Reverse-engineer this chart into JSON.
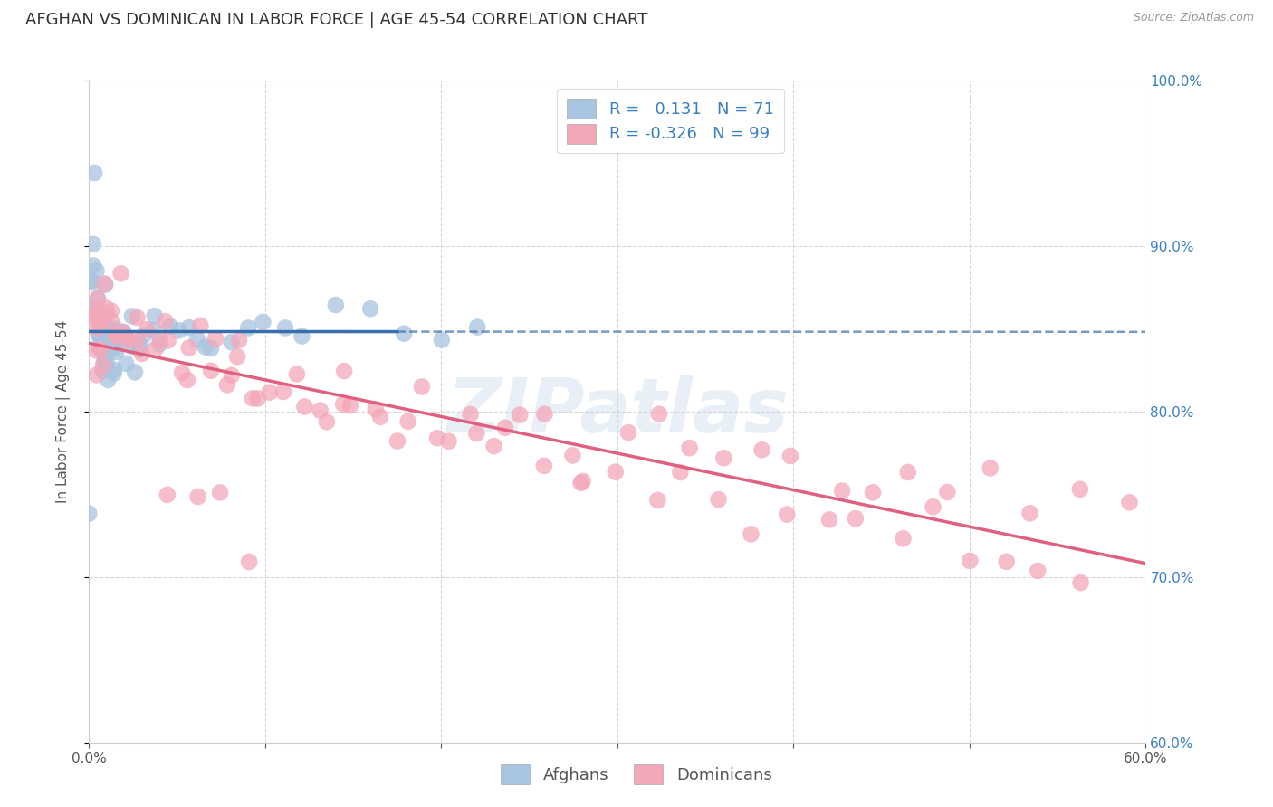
{
  "title": "AFGHAN VS DOMINICAN IN LABOR FORCE | AGE 45-54 CORRELATION CHART",
  "source": "Source: ZipAtlas.com",
  "ylabel": "In Labor Force | Age 45-54",
  "xlim": [
    0.0,
    0.6
  ],
  "ylim": [
    0.6,
    1.0
  ],
  "xticks": [
    0.0,
    0.1,
    0.2,
    0.3,
    0.4,
    0.5,
    0.6
  ],
  "xtick_labels": [
    "0.0%",
    "",
    "",
    "",
    "",
    "",
    "60.0%"
  ],
  "yticks": [
    0.6,
    0.7,
    0.8,
    0.9,
    1.0
  ],
  "ytick_labels": [
    "60.0%",
    "70.0%",
    "80.0%",
    "90.0%",
    "100.0%"
  ],
  "afghan_R": 0.131,
  "afghan_N": 71,
  "dominican_R": -0.326,
  "dominican_N": 99,
  "afghan_color": "#a8c4e0",
  "dominican_color": "#f4a7b9",
  "afghan_line_color": "#3a6fad",
  "dominican_line_color": "#e06080",
  "legend_labels": [
    "Afghans",
    "Dominicans"
  ],
  "watermark_text": "ZIPatlas",
  "background_color": "#ffffff",
  "grid_color": "#cccccc",
  "title_fontsize": 13,
  "axis_label_fontsize": 11,
  "tick_fontsize": 11,
  "legend_fontsize": 13,
  "afghan_x": [
    0.001,
    0.002,
    0.002,
    0.003,
    0.003,
    0.003,
    0.004,
    0.004,
    0.004,
    0.005,
    0.005,
    0.005,
    0.005,
    0.006,
    0.006,
    0.006,
    0.006,
    0.007,
    0.007,
    0.007,
    0.007,
    0.008,
    0.008,
    0.008,
    0.009,
    0.009,
    0.01,
    0.01,
    0.01,
    0.011,
    0.011,
    0.012,
    0.012,
    0.013,
    0.013,
    0.014,
    0.014,
    0.015,
    0.015,
    0.016,
    0.016,
    0.017,
    0.018,
    0.019,
    0.02,
    0.021,
    0.022,
    0.024,
    0.025,
    0.027,
    0.03,
    0.032,
    0.035,
    0.038,
    0.04,
    0.045,
    0.05,
    0.055,
    0.06,
    0.065,
    0.07,
    0.08,
    0.09,
    0.1,
    0.11,
    0.12,
    0.14,
    0.16,
    0.18,
    0.2,
    0.22
  ],
  "afghan_y": [
    0.745,
    0.935,
    0.91,
    0.895,
    0.88,
    0.865,
    0.88,
    0.87,
    0.86,
    0.875,
    0.865,
    0.855,
    0.845,
    0.86,
    0.855,
    0.845,
    0.835,
    0.86,
    0.85,
    0.84,
    0.835,
    0.85,
    0.84,
    0.835,
    0.845,
    0.838,
    0.848,
    0.84,
    0.832,
    0.845,
    0.835,
    0.845,
    0.838,
    0.845,
    0.838,
    0.845,
    0.838,
    0.845,
    0.838,
    0.845,
    0.84,
    0.842,
    0.84,
    0.84,
    0.842,
    0.84,
    0.842,
    0.842,
    0.84,
    0.842,
    0.842,
    0.845,
    0.843,
    0.845,
    0.843,
    0.845,
    0.845,
    0.847,
    0.848,
    0.847,
    0.847,
    0.848,
    0.848,
    0.848,
    0.848,
    0.85,
    0.85,
    0.85,
    0.85,
    0.85,
    0.85
  ],
  "dominican_x": [
    0.001,
    0.002,
    0.003,
    0.003,
    0.004,
    0.005,
    0.005,
    0.006,
    0.007,
    0.008,
    0.009,
    0.01,
    0.011,
    0.012,
    0.013,
    0.014,
    0.015,
    0.016,
    0.018,
    0.02,
    0.022,
    0.025,
    0.028,
    0.03,
    0.033,
    0.036,
    0.04,
    0.044,
    0.048,
    0.053,
    0.058,
    0.063,
    0.068,
    0.074,
    0.08,
    0.087,
    0.094,
    0.102,
    0.11,
    0.118,
    0.127,
    0.136,
    0.146,
    0.156,
    0.167,
    0.178,
    0.19,
    0.203,
    0.216,
    0.23,
    0.244,
    0.259,
    0.274,
    0.29,
    0.307,
    0.324,
    0.342,
    0.361,
    0.38,
    0.4,
    0.421,
    0.443,
    0.465,
    0.488,
    0.512,
    0.537,
    0.563,
    0.59,
    0.055,
    0.07,
    0.085,
    0.1,
    0.12,
    0.14,
    0.16,
    0.18,
    0.2,
    0.22,
    0.24,
    0.26,
    0.28,
    0.3,
    0.32,
    0.34,
    0.36,
    0.38,
    0.4,
    0.42,
    0.44,
    0.46,
    0.48,
    0.5,
    0.52,
    0.54,
    0.56,
    0.045,
    0.06,
    0.075,
    0.09
  ],
  "dominican_y": [
    0.865,
    0.855,
    0.862,
    0.852,
    0.858,
    0.855,
    0.848,
    0.855,
    0.852,
    0.855,
    0.852,
    0.845,
    0.848,
    0.852,
    0.848,
    0.848,
    0.845,
    0.845,
    0.848,
    0.848,
    0.845,
    0.845,
    0.842,
    0.845,
    0.842,
    0.842,
    0.84,
    0.84,
    0.838,
    0.838,
    0.835,
    0.835,
    0.832,
    0.832,
    0.83,
    0.828,
    0.825,
    0.822,
    0.82,
    0.818,
    0.815,
    0.812,
    0.81,
    0.808,
    0.805,
    0.802,
    0.8,
    0.798,
    0.795,
    0.792,
    0.79,
    0.787,
    0.784,
    0.781,
    0.779,
    0.776,
    0.773,
    0.77,
    0.767,
    0.764,
    0.762,
    0.759,
    0.756,
    0.753,
    0.75,
    0.747,
    0.744,
    0.741,
    0.84,
    0.83,
    0.825,
    0.82,
    0.815,
    0.808,
    0.803,
    0.797,
    0.792,
    0.787,
    0.782,
    0.777,
    0.773,
    0.768,
    0.763,
    0.757,
    0.752,
    0.747,
    0.742,
    0.737,
    0.73,
    0.725,
    0.72,
    0.716,
    0.71,
    0.705,
    0.7,
    0.748,
    0.742,
    0.735,
    0.728
  ],
  "afghan_trend_x_start": 0.0,
  "afghan_trend_x_solid_end": 0.175,
  "afghan_trend_x_dash_end": 0.6,
  "dominican_trend_x_start": 0.0,
  "dominican_trend_x_end": 0.6
}
